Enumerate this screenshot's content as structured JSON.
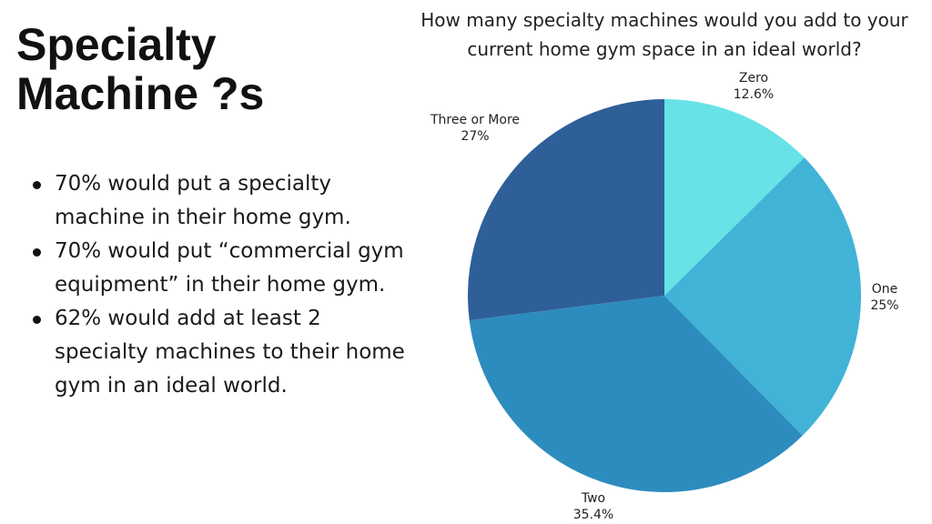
{
  "heading": {
    "line1": "Specialty",
    "line2": "Machine ?s"
  },
  "bullets": [
    "70% would put a specialty machine in their home gym.",
    "70% would put “commercial gym equipment” in their home gym.",
    "62% would add at least 2 specialty machines to their home gym in an ideal world."
  ],
  "chart_data": {
    "type": "pie",
    "title": "How many specialty machines would you add to your current home gym space in an ideal world?",
    "categories": [
      "Zero",
      "One",
      "Two",
      "Three or More"
    ],
    "values": [
      12.6,
      25,
      35.4,
      27
    ],
    "value_labels": [
      "12.6%",
      "25%",
      "35.4%",
      "27%"
    ],
    "colors": [
      "#67E2E7",
      "#40B3D6",
      "#2D8CBE",
      "#2E5F98"
    ],
    "start": "12 o'clock",
    "direction": "clockwise",
    "labels_position": "outside"
  }
}
